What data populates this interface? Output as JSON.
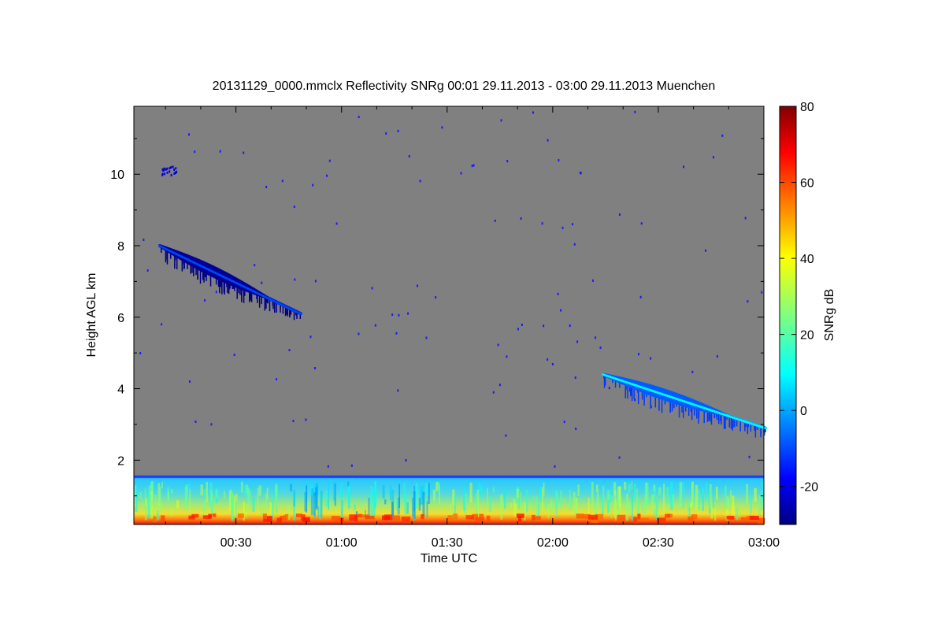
{
  "chart_data": {
    "type": "heatmap",
    "title": "20131129_0000.mmclx Reflectivity SNRg   00:01 29.11.2013 - 03:00 29.11.2013 Muenchen",
    "xlabel": "Time UTC",
    "ylabel": "Height AGL km",
    "xlim_minutes": [
      1,
      180
    ],
    "ylim_km": [
      0.2,
      11.9
    ],
    "x_ticks": [
      {
        "minutes": 30,
        "label": "00:30"
      },
      {
        "minutes": 60,
        "label": "01:00"
      },
      {
        "minutes": 90,
        "label": "01:30"
      },
      {
        "minutes": 120,
        "label": "02:00"
      },
      {
        "minutes": 150,
        "label": "02:30"
      },
      {
        "minutes": 180,
        "label": "03:00"
      }
    ],
    "y_ticks": [
      {
        "value": 2,
        "label": "2"
      },
      {
        "value": 4,
        "label": "4"
      },
      {
        "value": 6,
        "label": "6"
      },
      {
        "value": 8,
        "label": "8"
      },
      {
        "value": 10,
        "label": "10"
      }
    ],
    "background_color": "#808080",
    "colorbar": {
      "label": "SNRg dB",
      "range": [
        -30,
        80
      ],
      "ticks": [
        {
          "value": -20,
          "label": "-20"
        },
        {
          "value": 0,
          "label": "0"
        },
        {
          "value": 20,
          "label": "20"
        },
        {
          "value": 40,
          "label": "40"
        },
        {
          "value": 60,
          "label": "60"
        },
        {
          "value": 80,
          "label": "80"
        }
      ]
    },
    "features": [
      {
        "name": "cirrus-band-1",
        "start_minutes": 8,
        "end_minutes": 48,
        "start_km": 8.0,
        "end_km": 6.1,
        "snr_db": -18
      },
      {
        "name": "cirrus-band-2",
        "start_minutes": 134,
        "end_minutes": 180,
        "start_km": 4.4,
        "end_km": 2.9,
        "snr_db": 2
      },
      {
        "name": "high-cloud-patch",
        "minutes": 10,
        "km": 10.1,
        "snr_db": -22
      },
      {
        "name": "boundary-layer",
        "start_minutes": 1,
        "end_minutes": 180,
        "top_km": 1.55,
        "bottom_km": 0.2,
        "snr_db_range": [
          5,
          65
        ]
      }
    ]
  }
}
